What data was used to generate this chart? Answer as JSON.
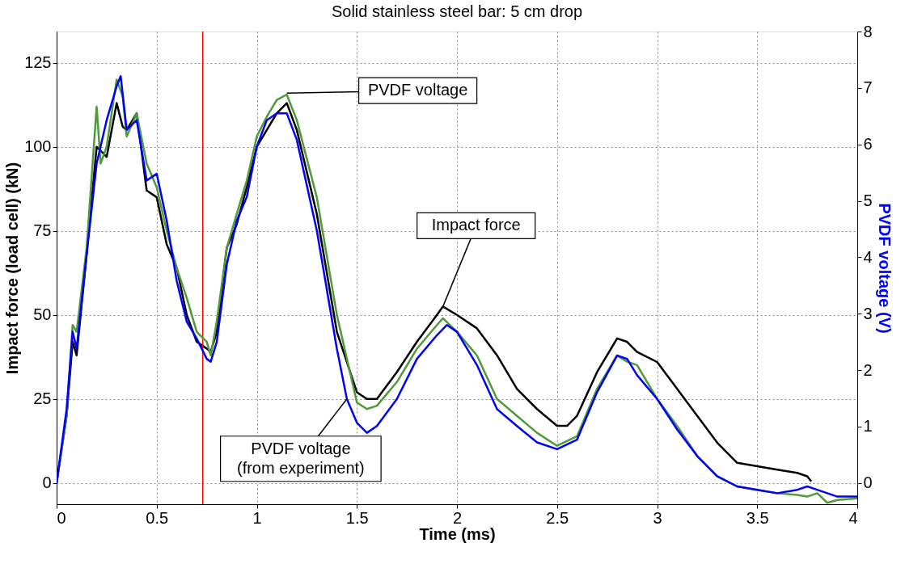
{
  "chart_data": {
    "type": "line",
    "title": "Solid stainless steel bar: 5 cm drop",
    "xlabel": "Time (ms)",
    "ylabel": "Impact force (load cell) (kN)",
    "y2label": "PVDF voltage (V)",
    "xlim": [
      0,
      4
    ],
    "xticks": [
      0,
      0.5,
      1,
      1.5,
      2,
      2.5,
      3,
      3.5,
      4
    ],
    "ylim": [
      -6.3,
      134.3
    ],
    "yticks": [
      0,
      25,
      50,
      75,
      100,
      125
    ],
    "y2lim": [
      -0.375,
      8
    ],
    "y2ticks": [
      0,
      1,
      2,
      3,
      4,
      5,
      6,
      7,
      8
    ],
    "grid": true,
    "line_style": "solid",
    "marker": "none",
    "series": [
      {
        "color": "#000000",
        "x": [
          0,
          0.05,
          0.08,
          0.1,
          0.15,
          0.2,
          0.25,
          0.3,
          0.33,
          0.35,
          0.4,
          0.45,
          0.5,
          0.55,
          0.6,
          0.65,
          0.7,
          0.75,
          0.77,
          0.8,
          0.85,
          0.9,
          0.95,
          1.0,
          1.05,
          1.1,
          1.15,
          1.2,
          1.3,
          1.4,
          1.5,
          1.55,
          1.6,
          1.7,
          1.8,
          1.9,
          1.93,
          2.0,
          2.1,
          2.2,
          2.3,
          2.4,
          2.5,
          2.55,
          2.6,
          2.7,
          2.8,
          2.85,
          2.9,
          3.0,
          3.1,
          3.2,
          3.3,
          3.4,
          3.5,
          3.6,
          3.7,
          3.75,
          3.77
        ],
        "values": [
          0,
          20,
          42,
          38,
          68,
          100,
          97,
          113,
          106,
          105,
          110,
          87,
          85,
          71,
          64,
          50,
          42,
          40,
          39,
          45,
          70,
          77,
          88,
          100,
          105,
          110,
          113,
          105,
          80,
          45,
          27,
          25,
          25,
          33,
          42,
          50,
          52.5,
          50,
          46,
          38,
          28,
          22,
          17,
          17,
          20,
          33,
          43,
          42,
          39,
          36,
          28,
          20,
          12,
          6,
          5,
          4,
          3,
          2,
          0.5
        ]
      },
      {
        "color": "#4f9a3a",
        "axis": "y2",
        "x": [
          0,
          0.05,
          0.08,
          0.1,
          0.15,
          0.2,
          0.22,
          0.25,
          0.3,
          0.33,
          0.35,
          0.4,
          0.45,
          0.5,
          0.55,
          0.6,
          0.65,
          0.7,
          0.75,
          0.77,
          0.8,
          0.85,
          0.9,
          0.95,
          1.0,
          1.05,
          1.1,
          1.15,
          1.2,
          1.3,
          1.4,
          1.5,
          1.55,
          1.6,
          1.7,
          1.8,
          1.9,
          1.93,
          2.0,
          2.1,
          2.2,
          2.3,
          2.4,
          2.5,
          2.6,
          2.7,
          2.8,
          2.85,
          2.9,
          3.0,
          3.1,
          3.2,
          3.3,
          3.4,
          3.5,
          3.6,
          3.7,
          3.75,
          3.8,
          3.85,
          3.9,
          4.0
        ],
        "values": [
          0,
          1.19,
          2.8,
          2.68,
          4.17,
          6.67,
          5.66,
          5.96,
          7.15,
          6.85,
          6.14,
          6.55,
          5.66,
          5.24,
          4.47,
          3.81,
          3.28,
          2.68,
          2.5,
          2.26,
          2.86,
          4.17,
          4.77,
          5.36,
          6.14,
          6.49,
          6.79,
          6.88,
          6.43,
          5.06,
          2.98,
          1.43,
          1.31,
          1.37,
          1.79,
          2.38,
          2.8,
          2.92,
          2.68,
          2.26,
          1.49,
          1.19,
          0.89,
          0.66,
          0.83,
          1.67,
          2.26,
          2.15,
          2.09,
          1.49,
          1.01,
          0.48,
          0.12,
          -0.06,
          -0.12,
          -0.18,
          -0.21,
          -0.24,
          -0.18,
          -0.35,
          -0.3,
          -0.27
        ]
      },
      {
        "color": "#0000ff",
        "axis": "y2",
        "x": [
          0,
          0.05,
          0.08,
          0.1,
          0.15,
          0.2,
          0.25,
          0.3,
          0.32,
          0.35,
          0.4,
          0.45,
          0.5,
          0.55,
          0.6,
          0.65,
          0.7,
          0.75,
          0.77,
          0.8,
          0.85,
          0.9,
          0.95,
          1.0,
          1.05,
          1.1,
          1.15,
          1.2,
          1.3,
          1.4,
          1.45,
          1.5,
          1.55,
          1.6,
          1.7,
          1.8,
          1.9,
          1.95,
          2.0,
          2.1,
          2.2,
          2.3,
          2.4,
          2.5,
          2.6,
          2.7,
          2.8,
          2.85,
          2.9,
          3.0,
          3.1,
          3.2,
          3.3,
          3.4,
          3.5,
          3.6,
          3.7,
          3.75,
          3.8,
          3.9,
          4.0
        ],
        "values": [
          0,
          1.31,
          2.68,
          2.38,
          4.05,
          5.66,
          6.43,
          7.03,
          7.21,
          6.26,
          6.43,
          5.36,
          5.48,
          4.65,
          3.58,
          2.86,
          2.56,
          2.2,
          2.15,
          2.5,
          3.87,
          4.65,
          5.07,
          5.96,
          6.43,
          6.55,
          6.55,
          6.08,
          4.47,
          2.38,
          1.49,
          1.07,
          0.89,
          1.01,
          1.49,
          2.2,
          2.62,
          2.8,
          2.68,
          2.09,
          1.31,
          1.01,
          0.72,
          0.6,
          0.77,
          1.61,
          2.26,
          2.2,
          1.91,
          1.49,
          0.95,
          0.48,
          0.12,
          -0.06,
          -0.12,
          -0.18,
          -0.12,
          -0.06,
          -0.12,
          -0.24,
          -0.24
        ]
      }
    ],
    "ref_lines": [
      {
        "axis": "x",
        "value": 0.73,
        "color": "#ff0000"
      }
    ],
    "annotations": [
      {
        "text": "PVDF voltage",
        "x": 1.15,
        "y": 116
      },
      {
        "text": "Impact force",
        "x": 1.93,
        "y": 52.5
      },
      {
        "text": "PVDF voltage\n(from experiment)",
        "x": 1.45,
        "y": 25
      }
    ]
  }
}
